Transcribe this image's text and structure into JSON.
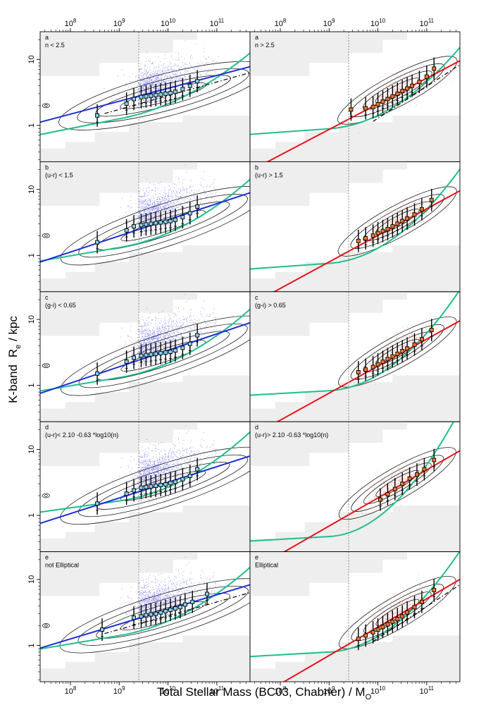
{
  "chart_data": {
    "type": "scatter",
    "title": "",
    "xlabel": "Total Stellar Mass (BC03, Chabrier) / M",
    "xlabel_sub": "O",
    "ylabel_prefix": "K-band",
    "ylabel_main": "R",
    "ylabel_sub": "e",
    "ylabel_suffix": " / kpc",
    "x_scale": "log10",
    "y_scale": "log10",
    "xlim_log": [
      7.38,
      11.68
    ],
    "ylim_log": [
      -0.55,
      1.42
    ],
    "x_tick_labels": [
      {
        "base": "10",
        "exp": "8"
      },
      {
        "base": "10",
        "exp": "9"
      },
      {
        "base": "10",
        "exp": "10"
      },
      {
        "base": "10",
        "exp": "11"
      }
    ],
    "x_tick_values_log": [
      8,
      9,
      10,
      11
    ],
    "y_tick_labels": [
      "1",
      "10"
    ],
    "y_tick_values_log": [
      0,
      1
    ],
    "completeness_limit_log_mass": 9.4,
    "colors": {
      "blue_points": "#3a3ae8",
      "red_points": "#e46a6a",
      "blue_line": "#1f2fd8",
      "red_line": "#e8141a",
      "green_curve": "#1fbf8a",
      "shade": "#eeeeee",
      "contour": "#222222",
      "box_fill": "#7fd7e8",
      "box_fill_red": "#f07a2a"
    },
    "panels": [
      {
        "row": 0,
        "col": 0,
        "letter": "a",
        "label": "n < 2.5",
        "series": "blue",
        "fit_line": [
          {
            "x": 7.38,
            "y": 0.05
          },
          {
            "x": 11.68,
            "y": 0.89
          }
        ],
        "green_curve": {
          "a": 0.1,
          "b": 0.14,
          "c": 0.48
        },
        "medians_x": [
          8.55,
          9.15,
          9.3,
          9.45,
          9.55,
          9.65,
          9.75,
          9.85,
          9.95,
          10.05,
          10.15,
          10.3,
          10.45,
          10.6
        ],
        "medians_y": [
          0.15,
          0.33,
          0.4,
          0.43,
          0.44,
          0.45,
          0.46,
          0.47,
          0.48,
          0.49,
          0.51,
          0.55,
          0.6,
          0.67
        ],
        "dashed": true
      },
      {
        "row": 0,
        "col": 1,
        "letter": "a",
        "label": "n > 2.5",
        "series": "red",
        "fit_line": [
          {
            "x": 7.38,
            "y": -0.69
          },
          {
            "x": 11.68,
            "y": 0.98
          }
        ],
        "green_curve": {
          "a": -0.05,
          "b": 0.05,
          "c": 0.85
        },
        "medians_x": [
          9.45,
          9.75,
          9.9,
          10.0,
          10.1,
          10.2,
          10.3,
          10.4,
          10.5,
          10.6,
          10.7,
          10.85,
          11.0,
          11.15
        ],
        "medians_y": [
          0.24,
          0.26,
          0.28,
          0.32,
          0.36,
          0.4,
          0.44,
          0.48,
          0.52,
          0.56,
          0.6,
          0.66,
          0.74,
          0.86
        ],
        "dashed": true
      },
      {
        "row": 1,
        "col": 0,
        "letter": "b",
        "label": "(u-r) < 1.5",
        "series": "blue",
        "fit_line": [
          {
            "x": 7.38,
            "y": -0.1
          },
          {
            "x": 11.68,
            "y": 0.95
          }
        ],
        "green_curve": {
          "a": 0.12,
          "b": 0.12,
          "c": 0.55
        },
        "medians_x": [
          8.55,
          9.15,
          9.3,
          9.45,
          9.55,
          9.65,
          9.75,
          9.85,
          9.95,
          10.05,
          10.15,
          10.3,
          10.45,
          10.6
        ],
        "medians_y": [
          0.2,
          0.38,
          0.44,
          0.46,
          0.47,
          0.48,
          0.49,
          0.5,
          0.51,
          0.52,
          0.54,
          0.58,
          0.64,
          0.74
        ],
        "dashed": false
      },
      {
        "row": 1,
        "col": 1,
        "letter": "b",
        "label": "(u-r) > 1.5",
        "series": "red",
        "fit_line": [
          {
            "x": 7.38,
            "y": -0.75
          },
          {
            "x": 11.68,
            "y": 0.98
          }
        ],
        "green_curve": {
          "a": -0.12,
          "b": 0.05,
          "c": 1.0
        },
        "medians_x": [
          9.6,
          9.75,
          9.9,
          10.0,
          10.1,
          10.2,
          10.3,
          10.4,
          10.5,
          10.6,
          10.75,
          10.9,
          11.1
        ],
        "medians_y": [
          0.22,
          0.26,
          0.3,
          0.34,
          0.37,
          0.4,
          0.44,
          0.48,
          0.52,
          0.56,
          0.62,
          0.7,
          0.84
        ],
        "dashed": false
      },
      {
        "row": 2,
        "col": 0,
        "letter": "c",
        "label": "(g-i) < 0.65",
        "series": "blue",
        "fit_line": [
          {
            "x": 7.38,
            "y": -0.12
          },
          {
            "x": 11.68,
            "y": 0.95
          }
        ],
        "green_curve": {
          "a": 0.12,
          "b": 0.12,
          "c": 0.55
        },
        "medians_x": [
          8.55,
          9.15,
          9.3,
          9.45,
          9.55,
          9.65,
          9.75,
          9.85,
          9.95,
          10.05,
          10.15,
          10.3,
          10.45,
          10.6
        ],
        "medians_y": [
          0.18,
          0.36,
          0.42,
          0.45,
          0.46,
          0.47,
          0.48,
          0.49,
          0.5,
          0.51,
          0.53,
          0.57,
          0.63,
          0.76
        ],
        "dashed": false
      },
      {
        "row": 2,
        "col": 1,
        "letter": "c",
        "label": "(g-i) > 0.65",
        "series": "red",
        "fit_line": [
          {
            "x": 7.38,
            "y": -0.78
          },
          {
            "x": 11.68,
            "y": 0.98
          }
        ],
        "green_curve": {
          "a": -0.08,
          "b": 0.04,
          "c": 1.1
        },
        "medians_x": [
          9.6,
          9.75,
          9.9,
          10.0,
          10.1,
          10.2,
          10.3,
          10.4,
          10.5,
          10.6,
          10.75,
          10.9,
          11.1
        ],
        "medians_y": [
          0.2,
          0.24,
          0.28,
          0.32,
          0.36,
          0.4,
          0.44,
          0.48,
          0.52,
          0.56,
          0.62,
          0.7,
          0.84
        ],
        "dashed": false
      },
      {
        "row": 3,
        "col": 0,
        "letter": "d",
        "label": "(u-r)< 2.10 -0.63 *log10(n)",
        "series": "blue",
        "fit_line": [
          {
            "x": 7.38,
            "y": -0.12
          },
          {
            "x": 11.68,
            "y": 0.9
          }
        ],
        "green_curve": {
          "a": 0.22,
          "b": 0.1,
          "c": 0.6
        },
        "medians_x": [
          8.55,
          9.15,
          9.3,
          9.45,
          9.55,
          9.65,
          9.75,
          9.85,
          9.95,
          10.05,
          10.15,
          10.3,
          10.45,
          10.6
        ],
        "medians_y": [
          0.18,
          0.33,
          0.38,
          0.42,
          0.43,
          0.44,
          0.45,
          0.46,
          0.47,
          0.49,
          0.51,
          0.55,
          0.6,
          0.7
        ],
        "dashed": false
      },
      {
        "row": 3,
        "col": 1,
        "letter": "d",
        "label": "(u-r)> 2.10 -0.63 *log10(n)",
        "series": "red",
        "fit_line": [
          {
            "x": 7.38,
            "y": -0.85
          },
          {
            "x": 11.68,
            "y": 0.98
          }
        ],
        "green_curve": {
          "a": -0.32,
          "b": 0.04,
          "c": 1.4
        },
        "medians_x": [
          10.05,
          10.2,
          10.35,
          10.5,
          10.65,
          10.8,
          10.95,
          11.15
        ],
        "medians_y": [
          0.24,
          0.32,
          0.4,
          0.48,
          0.56,
          0.62,
          0.7,
          0.84
        ],
        "dashed": false
      },
      {
        "row": 4,
        "col": 0,
        "letter": "e",
        "label": "not Elliptical",
        "series": "blue",
        "fit_line": [
          {
            "x": 7.38,
            "y": -0.04
          },
          {
            "x": 11.68,
            "y": 0.92
          }
        ],
        "green_curve": {
          "a": 0.15,
          "b": 0.12,
          "c": 0.55
        },
        "medians_x": [
          8.65,
          9.3,
          9.45,
          9.55,
          9.65,
          9.75,
          9.85,
          9.95,
          10.05,
          10.15,
          10.25,
          10.35,
          10.5,
          10.8
        ],
        "medians_y": [
          0.24,
          0.42,
          0.44,
          0.46,
          0.47,
          0.48,
          0.5,
          0.52,
          0.54,
          0.56,
          0.58,
          0.62,
          0.66,
          0.78
        ],
        "dashed": true
      },
      {
        "row": 4,
        "col": 1,
        "letter": "e",
        "label": "Elliptical",
        "series": "red",
        "fit_line": [
          {
            "x": 7.38,
            "y": -0.85
          },
          {
            "x": 11.68,
            "y": 1.0
          }
        ],
        "green_curve": {
          "a": -0.1,
          "b": 0.04,
          "c": 1.1
        },
        "medians_x": [
          9.6,
          9.75,
          9.9,
          10.0,
          10.1,
          10.2,
          10.3,
          10.4,
          10.5,
          10.6,
          10.75,
          10.9,
          11.15
        ],
        "medians_y": [
          0.1,
          0.15,
          0.2,
          0.24,
          0.28,
          0.32,
          0.36,
          0.4,
          0.44,
          0.5,
          0.58,
          0.66,
          0.84
        ],
        "dashed": true
      }
    ]
  }
}
